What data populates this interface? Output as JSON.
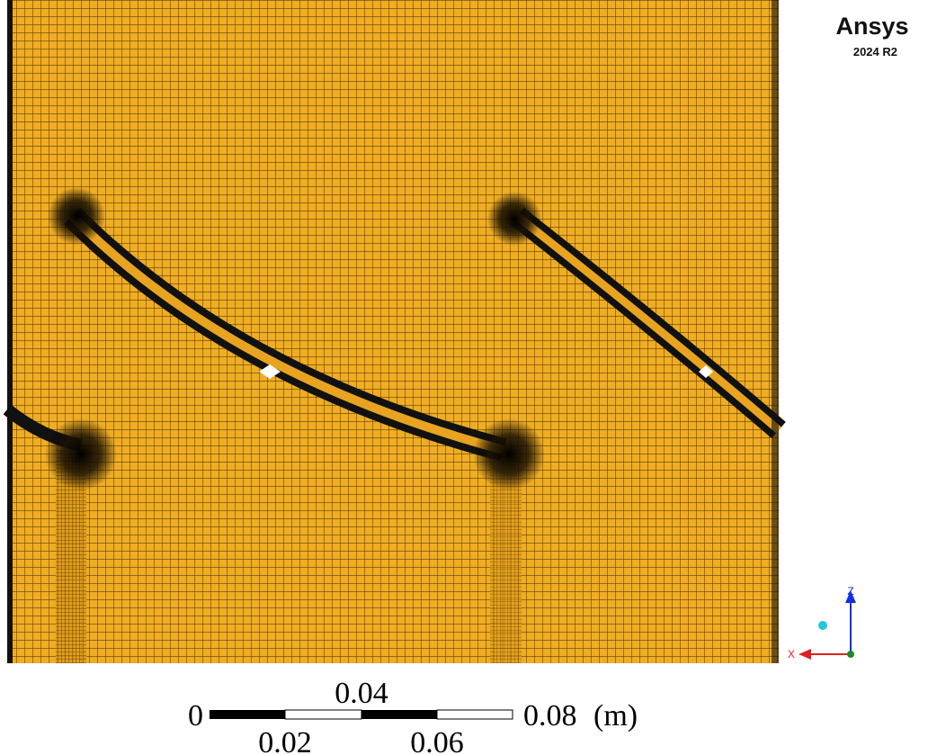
{
  "logo": {
    "brand": "Ansys",
    "version": "2024 R2"
  },
  "scale_bar": {
    "labels": [
      "0",
      "0.02",
      "0.04",
      "0.06",
      "0.08"
    ],
    "unit": "(m)"
  },
  "triad": {
    "z": "Z",
    "x": "X"
  }
}
